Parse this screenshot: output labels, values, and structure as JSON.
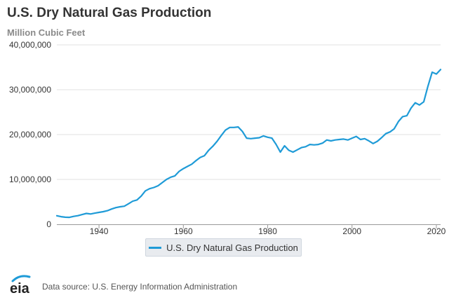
{
  "chart_data": {
    "type": "line",
    "title": "U.S. Dry Natural Gas Production",
    "subtitle": "Million Cubic Feet",
    "xlabel": "",
    "ylabel": "Million Cubic Feet",
    "xlim": [
      1930,
      2021
    ],
    "ylim": [
      0,
      40000000
    ],
    "grid": true,
    "legend_position": "bottom-center",
    "x_ticks": [
      1940,
      1960,
      1980,
      2000,
      2020
    ],
    "x_tick_labels": [
      "1940",
      "1960",
      "1980",
      "2000",
      "2020"
    ],
    "y_ticks": [
      0,
      10000000,
      20000000,
      30000000,
      40000000
    ],
    "y_tick_labels": [
      "0",
      "10,000,000",
      "20,000,000",
      "30,000,000",
      "40,000,000"
    ],
    "series": [
      {
        "name": "U.S. Dry Natural Gas Production",
        "color": "#1f9bd7",
        "points": [
          [
            1930,
            1900000
          ],
          [
            1931,
            1700000
          ],
          [
            1932,
            1580000
          ],
          [
            1933,
            1550000
          ],
          [
            1934,
            1770000
          ],
          [
            1935,
            1920000
          ],
          [
            1936,
            2170000
          ],
          [
            1937,
            2420000
          ],
          [
            1938,
            2300000
          ],
          [
            1939,
            2480000
          ],
          [
            1940,
            2660000
          ],
          [
            1941,
            2810000
          ],
          [
            1942,
            3030000
          ],
          [
            1943,
            3410000
          ],
          [
            1944,
            3720000
          ],
          [
            1945,
            3900000
          ],
          [
            1946,
            4030000
          ],
          [
            1947,
            4580000
          ],
          [
            1948,
            5150000
          ],
          [
            1949,
            5420000
          ],
          [
            1950,
            6280000
          ],
          [
            1951,
            7460000
          ],
          [
            1952,
            7930000
          ],
          [
            1953,
            8200000
          ],
          [
            1954,
            8600000
          ],
          [
            1955,
            9300000
          ],
          [
            1956,
            10000000
          ],
          [
            1957,
            10500000
          ],
          [
            1958,
            10800000
          ],
          [
            1959,
            11800000
          ],
          [
            1960,
            12400000
          ],
          [
            1961,
            12900000
          ],
          [
            1962,
            13400000
          ],
          [
            1963,
            14200000
          ],
          [
            1964,
            14900000
          ],
          [
            1965,
            15300000
          ],
          [
            1966,
            16500000
          ],
          [
            1967,
            17400000
          ],
          [
            1968,
            18500000
          ],
          [
            1969,
            19800000
          ],
          [
            1970,
            21000000
          ],
          [
            1971,
            21600000
          ],
          [
            1972,
            21600000
          ],
          [
            1973,
            21700000
          ],
          [
            1974,
            20700000
          ],
          [
            1975,
            19200000
          ],
          [
            1976,
            19100000
          ],
          [
            1977,
            19200000
          ],
          [
            1978,
            19300000
          ],
          [
            1979,
            19700000
          ],
          [
            1980,
            19400000
          ],
          [
            1981,
            19200000
          ],
          [
            1982,
            17800000
          ],
          [
            1983,
            16100000
          ],
          [
            1984,
            17500000
          ],
          [
            1985,
            16500000
          ],
          [
            1986,
            16100000
          ],
          [
            1987,
            16600000
          ],
          [
            1988,
            17100000
          ],
          [
            1989,
            17300000
          ],
          [
            1990,
            17800000
          ],
          [
            1991,
            17700000
          ],
          [
            1992,
            17800000
          ],
          [
            1993,
            18100000
          ],
          [
            1994,
            18800000
          ],
          [
            1995,
            18600000
          ],
          [
            1996,
            18800000
          ],
          [
            1997,
            18900000
          ],
          [
            1998,
            19000000
          ],
          [
            1999,
            18800000
          ],
          [
            2000,
            19200000
          ],
          [
            2001,
            19600000
          ],
          [
            2002,
            18900000
          ],
          [
            2003,
            19100000
          ],
          [
            2004,
            18600000
          ],
          [
            2005,
            18000000
          ],
          [
            2006,
            18500000
          ],
          [
            2007,
            19300000
          ],
          [
            2008,
            20200000
          ],
          [
            2009,
            20600000
          ],
          [
            2010,
            21300000
          ],
          [
            2011,
            22900000
          ],
          [
            2012,
            24000000
          ],
          [
            2013,
            24200000
          ],
          [
            2014,
            25900000
          ],
          [
            2015,
            27100000
          ],
          [
            2016,
            26600000
          ],
          [
            2017,
            27300000
          ],
          [
            2018,
            30800000
          ],
          [
            2019,
            33900000
          ],
          [
            2020,
            33500000
          ],
          [
            2021,
            34500000
          ]
        ]
      }
    ]
  },
  "legend": {
    "items": [
      {
        "label": "U.S. Dry Natural Gas Production",
        "color": "#1f9bd7"
      }
    ]
  },
  "footer": {
    "logo_text": "eia",
    "logo_icon": "eia-logo-icon",
    "source_text": "Data source: U.S. Energy Information Administration"
  }
}
